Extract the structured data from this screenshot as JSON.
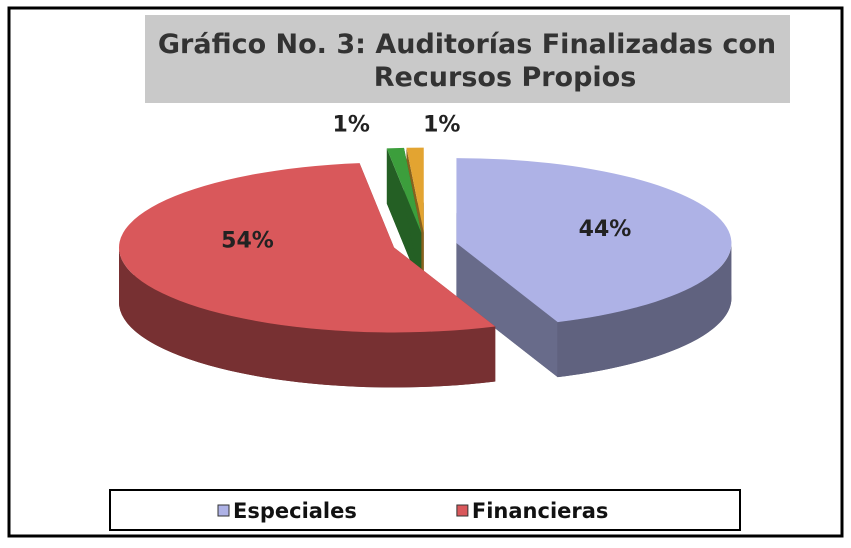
{
  "chart_data": {
    "type": "pie",
    "title": "Gráfico No. 3: Auditorías Finalizadas con Recursos Propios",
    "categories": [
      "Especiales",
      "Financieras",
      null,
      null
    ],
    "values": [
      44,
      54,
      1,
      1
    ],
    "value_labels": [
      "44%",
      "54%",
      "1%",
      "1%"
    ],
    "colors": [
      "#aeb2e6",
      "#d9585b",
      "#3c9e3c",
      "#e3a431"
    ],
    "legend": "bottom"
  }
}
